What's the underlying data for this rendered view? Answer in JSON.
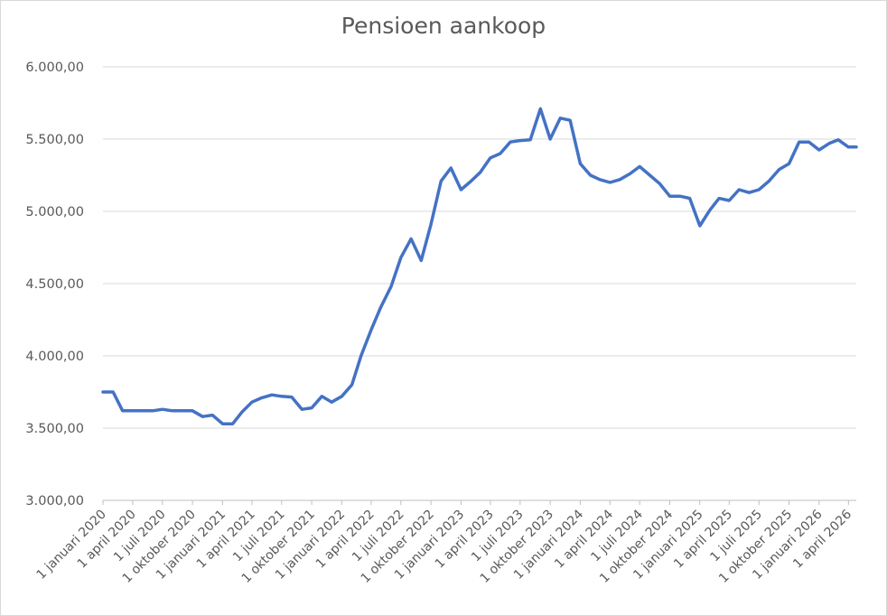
{
  "chart_data": {
    "type": "line",
    "title": "Pensioen aankoop",
    "xlabel": "",
    "ylabel": "",
    "ylim": [
      3000,
      6000
    ],
    "ytick_labels": [
      "3.000,00",
      "3.500,00",
      "4.000,00",
      "4.500,00",
      "5.000,00",
      "5.500,00",
      "6.000,00"
    ],
    "ytick_values": [
      3000,
      3500,
      4000,
      4500,
      5000,
      5500,
      6000
    ],
    "x_range": [
      "2020-01-01",
      "2026-04-25"
    ],
    "xtick_labels": [
      "1 januari 2020",
      "1 april 2020",
      "1 juli 2020",
      "1 oktober 2020",
      "1 januari 2021",
      "1 april 2021",
      "1 juli 2021",
      "1 oktober 2021",
      "1 januari 2022",
      "1 april 2022",
      "1 juli 2022",
      "1 oktober 2022",
      "1 januari 2023",
      "1 april 2023",
      "1 juli 2023",
      "1 oktober 2023",
      "1 januari 2024",
      "1 april 2024",
      "1 juli 2024",
      "1 oktober 2024",
      "1 januari 2025",
      "1 april 2025",
      "1 juli 2025",
      "1 oktober 2025",
      "1 januari 2026",
      "1 april 2026"
    ],
    "xtick_dates": [
      "2020-01-01",
      "2020-04-01",
      "2020-07-01",
      "2020-10-01",
      "2021-01-01",
      "2021-04-01",
      "2021-07-01",
      "2021-10-01",
      "2022-01-01",
      "2022-04-01",
      "2022-07-01",
      "2022-10-01",
      "2023-01-01",
      "2023-04-01",
      "2023-07-01",
      "2023-10-01",
      "2024-01-01",
      "2024-04-01",
      "2024-07-01",
      "2024-10-01",
      "2025-01-01",
      "2025-04-01",
      "2025-07-01",
      "2025-10-01",
      "2026-01-01",
      "2026-04-01"
    ],
    "grid": true,
    "legend": "none",
    "line_color": "#4472c4",
    "series": [
      {
        "x": [
          "2020-01-01",
          "2020-02-01",
          "2020-03-01",
          "2020-04-01",
          "2020-05-01",
          "2020-06-01",
          "2020-07-01",
          "2020-08-01",
          "2020-09-01",
          "2020-10-01",
          "2020-11-01",
          "2020-12-01",
          "2021-01-01",
          "2021-02-01",
          "2021-03-01",
          "2021-04-01",
          "2021-05-01",
          "2021-06-01",
          "2021-07-01",
          "2021-08-01",
          "2021-09-01",
          "2021-10-01",
          "2021-11-01",
          "2021-12-01",
          "2022-01-01",
          "2022-02-01",
          "2022-03-01",
          "2022-04-01",
          "2022-05-01",
          "2022-06-01",
          "2022-07-01",
          "2022-08-01",
          "2022-09-01",
          "2022-10-01",
          "2022-11-01",
          "2022-12-01",
          "2023-01-01",
          "2023-02-01",
          "2023-03-01",
          "2023-04-01",
          "2023-05-01",
          "2023-06-01",
          "2023-07-01",
          "2023-08-01",
          "2023-09-01",
          "2023-10-01",
          "2023-11-01",
          "2023-12-01",
          "2024-01-01",
          "2024-02-01",
          "2024-03-01",
          "2024-04-01",
          "2024-05-01",
          "2024-06-01",
          "2024-07-01",
          "2024-08-01",
          "2024-09-01",
          "2024-10-01",
          "2024-11-01",
          "2024-12-01",
          "2025-01-01",
          "2025-02-01",
          "2025-03-01",
          "2025-04-01",
          "2025-05-01",
          "2025-06-01",
          "2025-07-01",
          "2025-08-01",
          "2025-09-01",
          "2025-10-01",
          "2025-11-01",
          "2025-12-01",
          "2026-01-01",
          "2026-02-01",
          "2026-03-01",
          "2026-04-01",
          "2026-04-25"
        ],
        "values": [
          3750,
          3750,
          3620,
          3620,
          3620,
          3620,
          3630,
          3620,
          3620,
          3620,
          3580,
          3590,
          3530,
          3530,
          3610,
          3680,
          3710,
          3730,
          3720,
          3715,
          3630,
          3640,
          3720,
          3680,
          3720,
          3800,
          4000,
          4180,
          4340,
          4480,
          4680,
          4810,
          4660,
          4910,
          5210,
          5300,
          5150,
          5210,
          5270,
          5370,
          5400,
          5480,
          5490,
          5495,
          5710,
          5500,
          5645,
          5630,
          5330,
          5250,
          5220,
          5200,
          5220,
          5260,
          5310,
          5250,
          5190,
          5105,
          5105,
          5090,
          4900,
          5010,
          5090,
          5075,
          5150,
          5130,
          5150,
          5210,
          5290,
          5330,
          5480,
          5480,
          5425,
          5470,
          5495,
          5445,
          5445
        ]
      }
    ]
  }
}
